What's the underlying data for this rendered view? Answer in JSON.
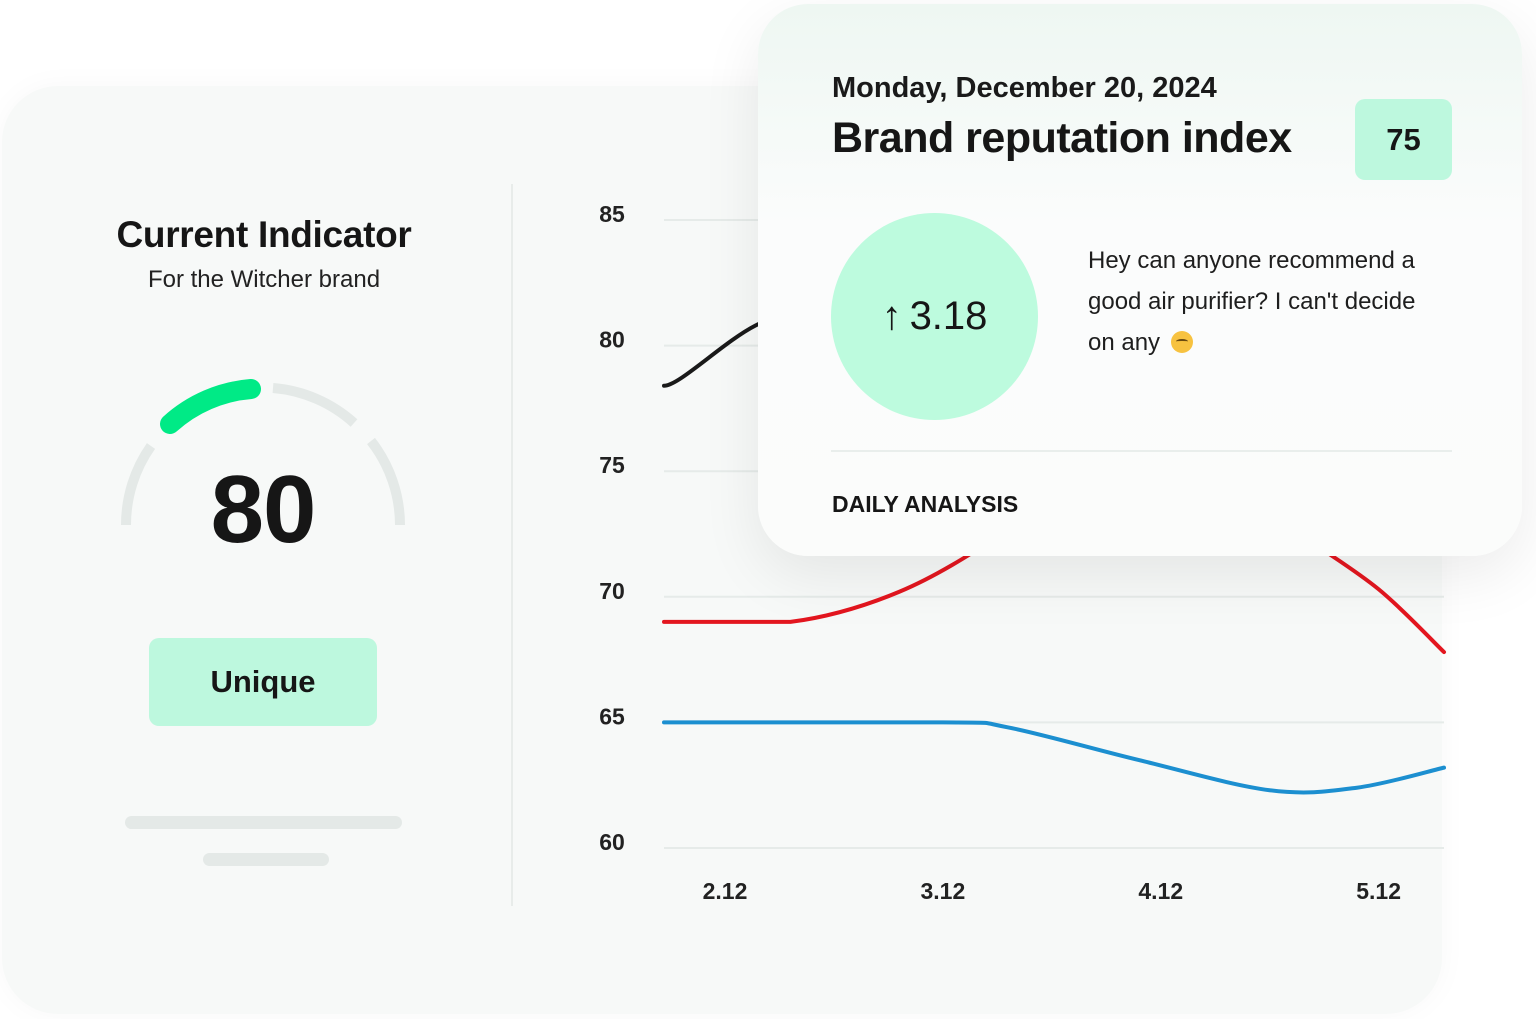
{
  "indicator": {
    "title": "Current Indicator",
    "subtitle": "For the Witcher brand",
    "value": "80",
    "button_label": "Unique",
    "gauge_color": "#00ea86",
    "track_color": "#e4e9e7"
  },
  "popup": {
    "date": "Monday, December 20, 2024",
    "title": "Brand reputation index",
    "badge": "75",
    "change": "3.18",
    "change_icon": "arrow-up-icon",
    "message": "Hey can anyone recommend a good air purifier? I can't decide on any",
    "message_emoji": "disappointed-face-emoji",
    "section_label": "DAILY ANALYSIS",
    "accent_color": "#bdf8de"
  },
  "chart_data": {
    "type": "line",
    "x_ticks": [
      "2.12",
      "3.12",
      "4.12",
      "5.12"
    ],
    "x_tick_values": [
      2,
      3,
      4,
      5
    ],
    "xlim": [
      1.72,
      5.3
    ],
    "y_ticks": [
      "85",
      "80",
      "75",
      "70",
      "65",
      "60"
    ],
    "ylim": [
      60,
      85
    ],
    "grid": true,
    "series": [
      {
        "color": "#1a1a1a",
        "points": [
          [
            1.72,
            78.4
          ],
          [
            2.14,
            80.8
          ],
          [
            2.6,
            82.3
          ],
          [
            3.0,
            83.0
          ]
        ]
      },
      {
        "color": "#e3161f",
        "points": [
          [
            1.72,
            69
          ],
          [
            2.3,
            69
          ],
          [
            2.8,
            70.2
          ],
          [
            3.27,
            72.5
          ],
          [
            3.7,
            75.3
          ],
          [
            4.2,
            75.3
          ],
          [
            4.64,
            72.5
          ],
          [
            5.0,
            70.3
          ],
          [
            5.3,
            67.8
          ]
        ]
      },
      {
        "color": "#1c8fd0",
        "points": [
          [
            1.72,
            65
          ],
          [
            3.0,
            65
          ],
          [
            3.3,
            64.8
          ],
          [
            3.9,
            63.5
          ],
          [
            4.5,
            62.3
          ],
          [
            4.9,
            62.4
          ],
          [
            5.3,
            63.2
          ]
        ]
      }
    ]
  }
}
